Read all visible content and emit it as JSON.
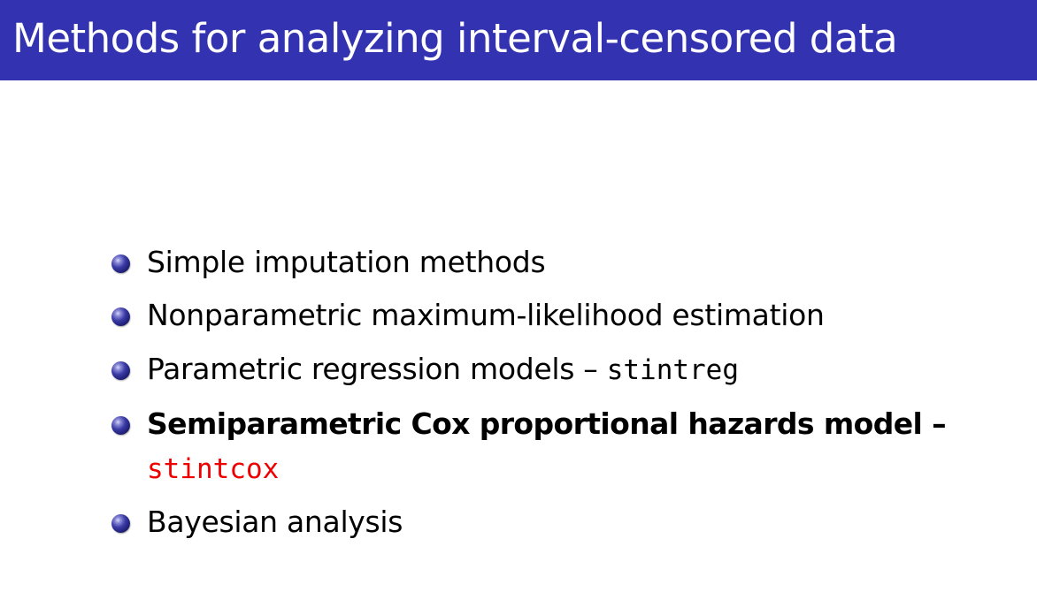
{
  "slide": {
    "title": "Methods for analyzing interval-censored data",
    "items": [
      {
        "text": "Simple imputation methods"
      },
      {
        "text": "Nonparametric maximum-likelihood estimation"
      },
      {
        "text": "Parametric regression models – ",
        "code": "stintreg"
      },
      {
        "text": "Semiparametric Cox proportional hazards model –",
        "code": "stintcox"
      },
      {
        "text": "Bayesian analysis"
      }
    ]
  },
  "colors": {
    "title_bar": "#3333b2",
    "title_text": "#ffffff",
    "body_text": "#000000",
    "highlight_code": "#ee0000",
    "bullet": "#22227a"
  },
  "icons": {
    "bullet": "ball-bullet-icon"
  }
}
